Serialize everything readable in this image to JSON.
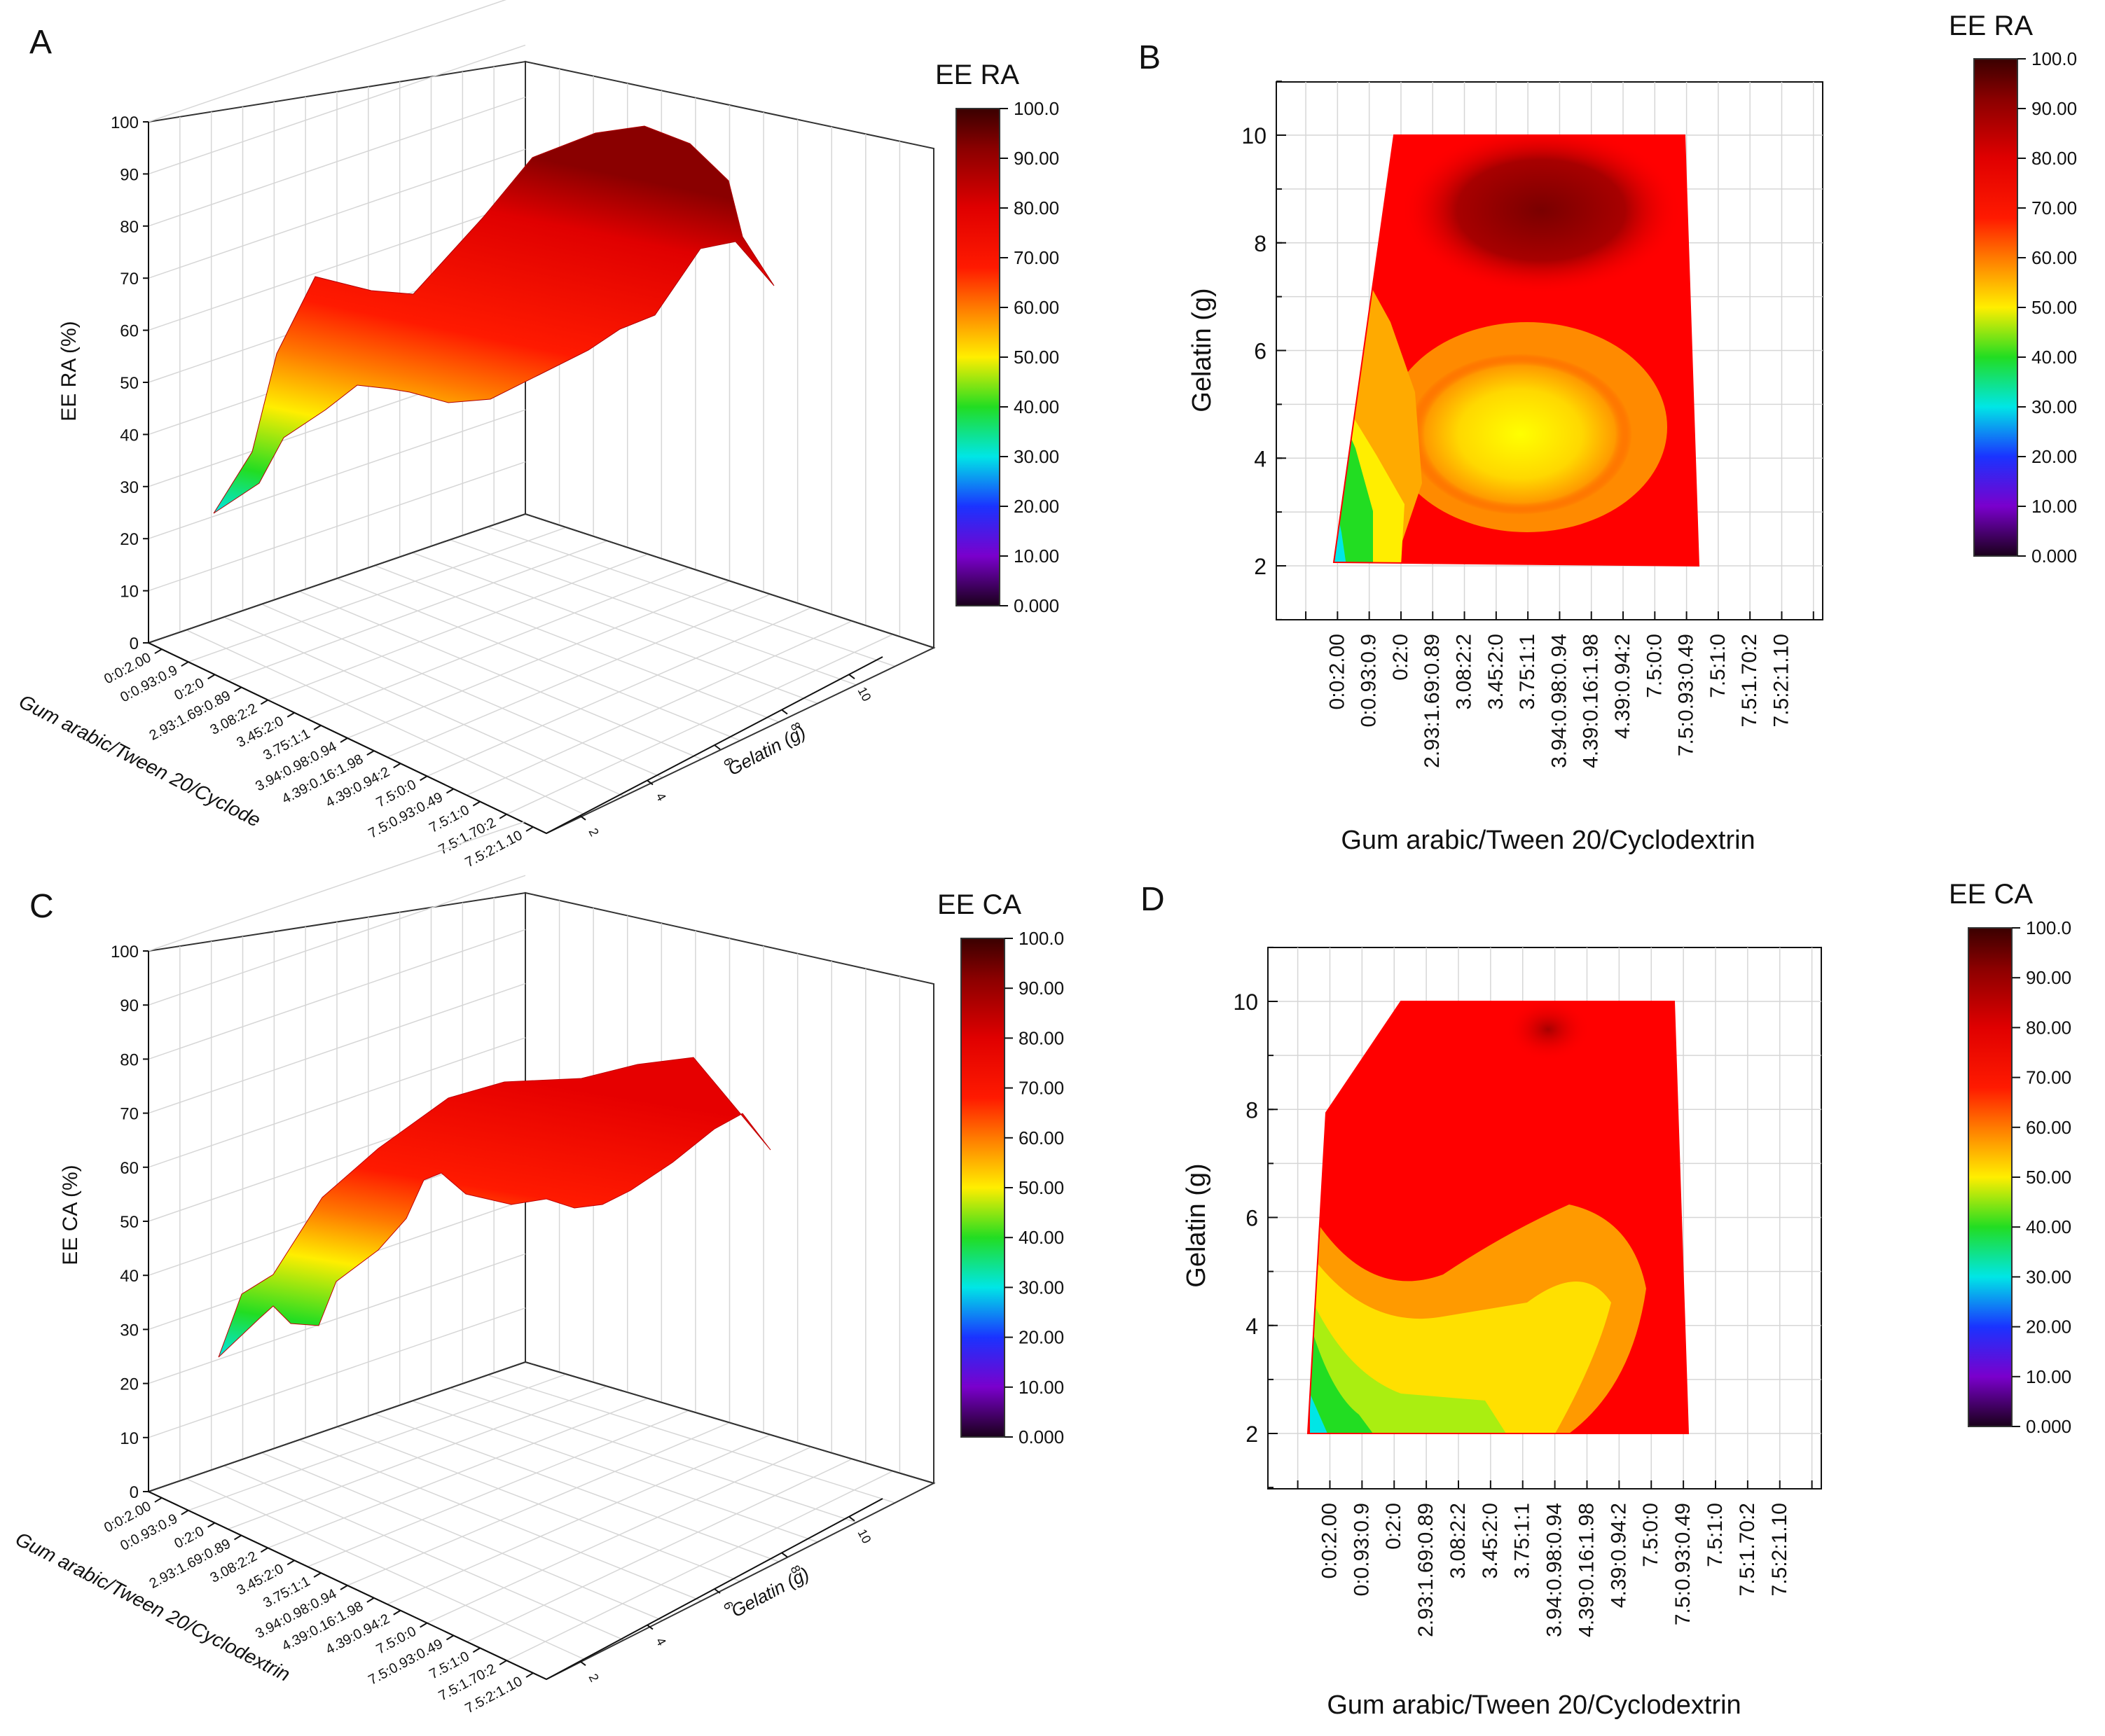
{
  "chart_data": [
    {
      "panel": "A",
      "type": "surface3d",
      "zlabel": "EE RA (%)",
      "xlabel": "Gum arabic/Tween 20/Cyclode",
      "ylabel": "Gelatin (g)",
      "zticks": [
        "0",
        "10",
        "20",
        "30",
        "40",
        "50",
        "60",
        "70",
        "80",
        "90",
        "100"
      ],
      "xticks": [
        "0:0:2.00",
        "0:0.93:0.9",
        "0:2:0",
        "2.93:1.69:0.89",
        "3.08:2:2",
        "3.45:2:0",
        "3.75:1:1",
        "3.94:0.98:0.94",
        "4.39:0.16:1.98",
        "4.39:0.94:2",
        "7.5:0:0",
        "7.5:0.93:0.49",
        "7.5:1:0",
        "7.5:1.70:2",
        "7.5:2:1.10"
      ],
      "yticks": [
        "10",
        "8",
        "6",
        "4",
        "2"
      ],
      "colorbar_title": "EE RA",
      "colorbar_ticks": [
        "100.0",
        "90.00",
        "80.00",
        "70.00",
        "60.00",
        "50.00",
        "40.00",
        "30.00",
        "20.00",
        "10.00",
        "0.000"
      ],
      "zlim": [
        0,
        100
      ]
    },
    {
      "panel": "B",
      "type": "contour",
      "ylabel": "Gelatin (g)",
      "xlabel": "Gum arabic/Tween 20/Cyclodextrin",
      "yticks": [
        "10",
        "8",
        "6",
        "4",
        "2"
      ],
      "xticks": [
        "0:0:2.00",
        "0:0.93:0.9",
        "0:2:0",
        "2.93:1.69:0.89",
        "3.08:2:2",
        "3.45:2:0",
        "3.75:1:1",
        "3.94:0.98:0.94",
        "4.39:0.16:1.98",
        "4.39:0.94:2",
        "7.5:0:0",
        "7.5:0.93:0.49",
        "7.5:1:0",
        "7.5:1.70:2",
        "7.5:2:1.10"
      ],
      "colorbar_title": "EE RA",
      "colorbar_ticks": [
        "100.0",
        "90.00",
        "80.00",
        "70.00",
        "60.00",
        "50.00",
        "40.00",
        "30.00",
        "20.00",
        "10.00",
        "0.000"
      ],
      "ylim": [
        1,
        11
      ]
    },
    {
      "panel": "C",
      "type": "surface3d",
      "zlabel": "EE CA (%)",
      "xlabel": "Gum arabic/Tween 20/Cyclodextrin",
      "ylabel": "Gelatin (g)",
      "zticks": [
        "0",
        "10",
        "20",
        "30",
        "40",
        "50",
        "60",
        "70",
        "80",
        "90",
        "100"
      ],
      "xticks": [
        "0:0:2.00",
        "0:0.93:0.9",
        "0:2:0",
        "2.93:1.69:0.89",
        "3.08:2:2",
        "3.45:2:0",
        "3.75:1:1",
        "3.94:0.98:0.94",
        "4.39:0.16:1.98",
        "4.39:0.94:2",
        "7.5:0:0",
        "7.5:0.93:0.49",
        "7.5:1:0",
        "7.5:1.70:2",
        "7.5:2:1.10"
      ],
      "yticks": [
        "10",
        "8",
        "6",
        "4",
        "2"
      ],
      "colorbar_title": "EE CA",
      "colorbar_ticks": [
        "100.0",
        "90.00",
        "80.00",
        "70.00",
        "60.00",
        "50.00",
        "40.00",
        "30.00",
        "20.00",
        "10.00",
        "0.000"
      ],
      "zlim": [
        0,
        100
      ]
    },
    {
      "panel": "D",
      "type": "contour",
      "ylabel": "Gelatin (g)",
      "xlabel": "Gum arabic/Tween 20/Cyclodextrin",
      "yticks": [
        "10",
        "8",
        "6",
        "4",
        "2"
      ],
      "xticks": [
        "0:0:2.00",
        "0:0.93:0.9",
        "0:2:0",
        "2.93:1.69:0.89",
        "3.08:2:2",
        "3.45:2:0",
        "3.75:1:1",
        "3.94:0.98:0.94",
        "4.39:0.16:1.98",
        "4.39:0.94:2",
        "7.5:0:0",
        "7.5:0.93:0.49",
        "7.5:1:0",
        "7.5:1.70:2",
        "7.5:2:1.10"
      ],
      "colorbar_title": "EE CA",
      "colorbar_ticks": [
        "100.0",
        "90.00",
        "80.00",
        "70.00",
        "60.00",
        "50.00",
        "40.00",
        "30.00",
        "20.00",
        "10.00",
        "0.000"
      ],
      "ylim": [
        1,
        11
      ]
    }
  ],
  "colors": {
    "c100": "#3a0000",
    "c90": "#a80000",
    "c80": "#e60000",
    "c70": "#ff1a00",
    "c60": "#ff8800",
    "c50": "#ffee00",
    "c40": "#22dd22",
    "c30": "#00e6e6",
    "c20": "#1a33ff",
    "c10": "#7a00cc",
    "c0": "#1a001a"
  }
}
